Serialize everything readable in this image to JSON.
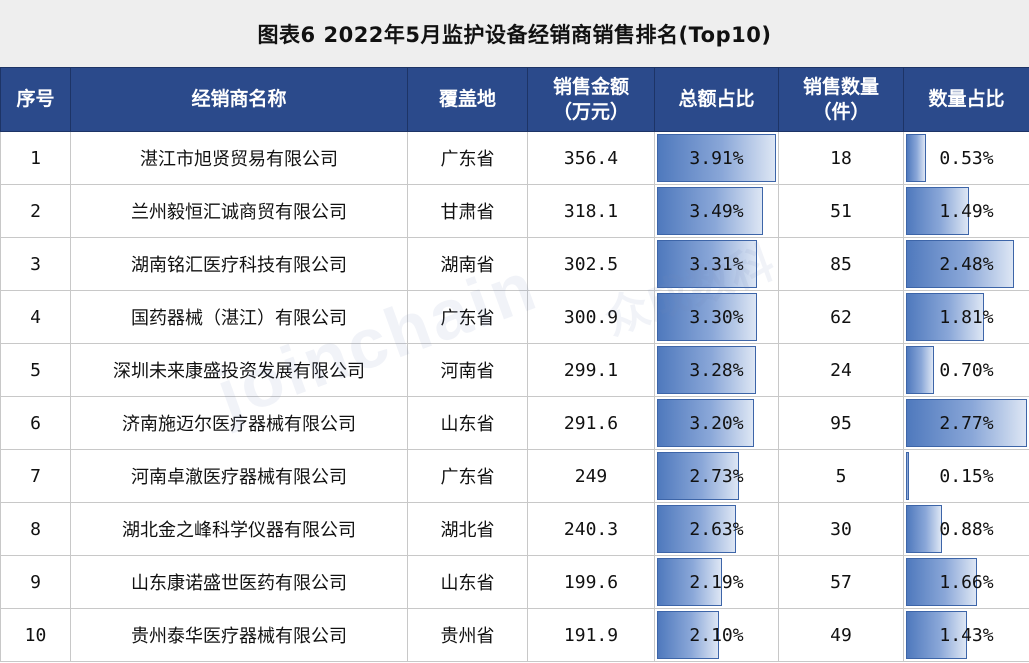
{
  "title": "图表6 2022年5月监护设备经销商销售排名(Top10)",
  "headers": {
    "index": "序号",
    "dealer": "经销商名称",
    "region": "覆盖地",
    "amount_line1": "销售金额",
    "amount_line2": "（万元）",
    "amount_share": "总额占比",
    "qty_line1": "销售数量",
    "qty_line2": "（件）",
    "qty_share": "数量占比"
  },
  "rows": [
    {
      "index": "1",
      "dealer": "湛江市旭贤贸易有限公司",
      "region": "广东省",
      "amount": "356.4",
      "amount_share": "3.91%",
      "amount_share_value": 3.91,
      "qty": "18",
      "qty_share": "0.53%",
      "qty_share_value": 0.53
    },
    {
      "index": "2",
      "dealer": "兰州毅恒汇诚商贸有限公司",
      "region": "甘肃省",
      "amount": "318.1",
      "amount_share": "3.49%",
      "amount_share_value": 3.49,
      "qty": "51",
      "qty_share": "1.49%",
      "qty_share_value": 1.49
    },
    {
      "index": "3",
      "dealer": "湖南铭汇医疗科技有限公司",
      "region": "湖南省",
      "amount": "302.5",
      "amount_share": "3.31%",
      "amount_share_value": 3.31,
      "qty": "85",
      "qty_share": "2.48%",
      "qty_share_value": 2.48
    },
    {
      "index": "4",
      "dealer": "国药器械（湛江）有限公司",
      "region": "广东省",
      "amount": "300.9",
      "amount_share": "3.30%",
      "amount_share_value": 3.3,
      "qty": "62",
      "qty_share": "1.81%",
      "qty_share_value": 1.81
    },
    {
      "index": "5",
      "dealer": "深圳未来康盛投资发展有限公司",
      "region": "河南省",
      "amount": "299.1",
      "amount_share": "3.28%",
      "amount_share_value": 3.28,
      "qty": "24",
      "qty_share": "0.70%",
      "qty_share_value": 0.7
    },
    {
      "index": "6",
      "dealer": "济南施迈尔医疗器械有限公司",
      "region": "山东省",
      "amount": "291.6",
      "amount_share": "3.20%",
      "amount_share_value": 3.2,
      "qty": "95",
      "qty_share": "2.77%",
      "qty_share_value": 2.77
    },
    {
      "index": "7",
      "dealer": "河南卓澈医疗器械有限公司",
      "region": "广东省",
      "amount": "249",
      "amount_share": "2.73%",
      "amount_share_value": 2.73,
      "qty": "5",
      "qty_share": "0.15%",
      "qty_share_value": 0.15
    },
    {
      "index": "8",
      "dealer": "湖北金之峰科学仪器有限公司",
      "region": "湖北省",
      "amount": "240.3",
      "amount_share": "2.63%",
      "amount_share_value": 2.63,
      "qty": "30",
      "qty_share": "0.88%",
      "qty_share_value": 0.88
    },
    {
      "index": "9",
      "dealer": "山东康诺盛世医药有限公司",
      "region": "山东省",
      "amount": "199.6",
      "amount_share": "2.19%",
      "amount_share_value": 2.19,
      "qty": "57",
      "qty_share": "1.66%",
      "qty_share_value": 1.66
    },
    {
      "index": "10",
      "dealer": "贵州泰华医疗器械有限公司",
      "region": "贵州省",
      "amount": "191.9",
      "amount_share": "2.10%",
      "amount_share_value": 2.1,
      "qty": "49",
      "qty_share": "1.43%",
      "qty_share_value": 1.43
    }
  ],
  "watermark": {
    "latin": "joinchain",
    "cn": "众成数科"
  },
  "colors": {
    "header_bg": "#2b4a8b",
    "bar": "#4f79bd",
    "title_bg": "#eeeeee"
  }
}
